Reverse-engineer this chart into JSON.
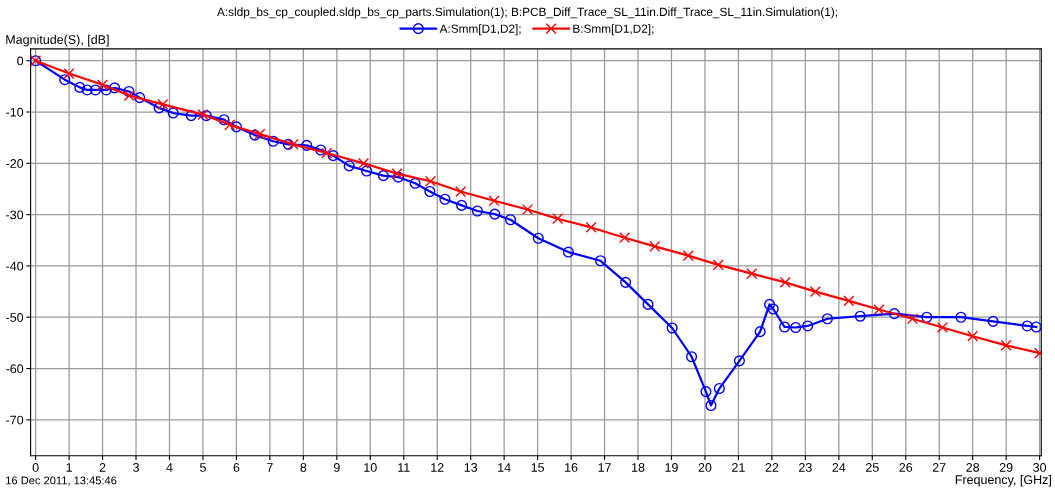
{
  "chart_data": {
    "type": "line",
    "title": "A:sldp_bs_cp_coupled.sldp_bs_cp_parts.Simulation(1); B:PCB_Diff_Trace_SL_11in.Diff_Trace_SL_11in.Simulation(1);",
    "ylabel": "Magnitude(S), [dB]",
    "xlabel": "Frequency, [GHz]",
    "annotations": [
      "16 Dec 2011, 13:45:46"
    ],
    "xlim": [
      -0.15,
      30.05
    ],
    "ylim": [
      -77,
      2.3
    ],
    "xticks": [
      0,
      1,
      2,
      3,
      4,
      5,
      6,
      7,
      8,
      9,
      10,
      11,
      12,
      13,
      14,
      15,
      16,
      17,
      18,
      19,
      20,
      21,
      22,
      23,
      24,
      25,
      26,
      27,
      28,
      29,
      30
    ],
    "yticks": [
      0,
      -10,
      -20,
      -30,
      -40,
      -50,
      -60,
      -70
    ],
    "grid": true,
    "legend": "top",
    "line_style": "solid",
    "series": [
      {
        "name": "A:Smm[D1,D2];",
        "color": "#0000ff",
        "marker": "circle",
        "x": [
          0,
          0.87,
          1.32,
          1.54,
          1.79,
          2.11,
          2.36,
          2.79,
          3.11,
          3.69,
          4.11,
          4.65,
          5.1,
          5.63,
          6.0,
          6.55,
          7.1,
          7.55,
          8.1,
          8.52,
          8.89,
          9.37,
          9.89,
          10.39,
          10.84,
          11.34,
          11.78,
          12.23,
          12.73,
          13.2,
          13.72,
          14.19,
          15.02,
          15.92,
          16.88,
          17.63,
          18.3,
          19.02,
          19.6,
          20.03,
          20.18,
          20.43,
          21.03,
          21.65,
          21.93,
          22.04,
          22.38,
          22.71,
          23.07,
          23.66,
          24.64,
          25.66,
          26.63,
          27.65,
          28.61,
          29.63,
          29.9
        ],
        "values": [
          0,
          -3.7,
          -5.2,
          -5.7,
          -5.7,
          -5.7,
          -5.3,
          -6.0,
          -7.2,
          -9.2,
          -10.2,
          -10.7,
          -10.7,
          -11.5,
          -12.9,
          -14.5,
          -15.7,
          -16.3,
          -16.5,
          -17.4,
          -18.5,
          -20.5,
          -21.5,
          -22.4,
          -22.7,
          -23.9,
          -25.5,
          -27.0,
          -28.2,
          -29.3,
          -29.9,
          -31.0,
          -34.6,
          -37.3,
          -39.0,
          -43.2,
          -47.5,
          -52.1,
          -57.7,
          -64.5,
          -67.2,
          -63.9,
          -58.5,
          -52.8,
          -47.5,
          -48.4,
          -51.9,
          -52.0,
          -51.7,
          -50.3,
          -49.8,
          -49.3,
          -50.0,
          -50.0,
          -50.8,
          -51.7,
          -51.9
        ]
      },
      {
        "name": "B:Smm[D1,D2];",
        "color": "#ff0000",
        "marker": "cross",
        "x": [
          0,
          1,
          2,
          2.8,
          3.8,
          5,
          5.8,
          6.7,
          7.7,
          8.7,
          9.8,
          10.8,
          11.8,
          12.7,
          13.7,
          14.7,
          15.6,
          16.6,
          17.6,
          18.5,
          19.5,
          20.4,
          21.4,
          22.4,
          23.3,
          24.3,
          25.2,
          26.2,
          27.1,
          28,
          29,
          30
        ],
        "values": [
          0,
          -2.5,
          -4.7,
          -6.8,
          -8.5,
          -10.5,
          -12.5,
          -14.3,
          -16.3,
          -18,
          -20,
          -22,
          -23.5,
          -25.5,
          -27.3,
          -29,
          -30.8,
          -32.5,
          -34.5,
          -36.2,
          -38,
          -39.8,
          -41.5,
          -43.2,
          -45,
          -46.8,
          -48.5,
          -50.3,
          -52,
          -53.7,
          -55.5,
          -57
        ]
      }
    ]
  }
}
